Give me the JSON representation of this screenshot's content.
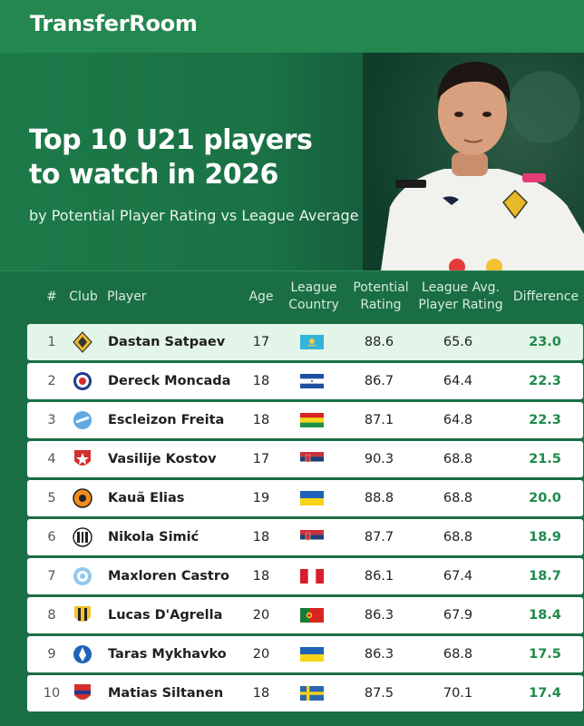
{
  "brand": "TransferRoom",
  "hero": {
    "title_line1": "Top 10 U21 players",
    "title_line2": "to watch in 2026",
    "subtitle": "by Potential Player Rating vs League Average"
  },
  "table": {
    "headers": {
      "rank": "#",
      "club": "Club",
      "player": "Player",
      "age": "Age",
      "league_country_1": "League",
      "league_country_2": "Country",
      "potential_1": "Potential",
      "potential_2": "Rating",
      "avg_1": "League Avg.",
      "avg_2": "Player Rating",
      "difference": "Difference"
    }
  },
  "chart_data": {
    "type": "table",
    "columns": [
      "#",
      "Club",
      "Player",
      "Age",
      "League Country",
      "Potential Rating",
      "League Avg. Player Rating",
      "Difference"
    ],
    "rows": [
      {
        "rank": "1",
        "player": "Dastan Satpaev",
        "age": "17",
        "country": "Kazakhstan",
        "potential": "88.6",
        "league_avg": "65.6",
        "difference": "23.0"
      },
      {
        "rank": "2",
        "player": "Dereck Moncada",
        "age": "18",
        "country": "Honduras",
        "potential": "86.7",
        "league_avg": "64.4",
        "difference": "22.3"
      },
      {
        "rank": "3",
        "player": "Escleizon Freita",
        "age": "18",
        "country": "Bolivia",
        "potential": "87.1",
        "league_avg": "64.8",
        "difference": "22.3"
      },
      {
        "rank": "4",
        "player": "Vasilije Kostov",
        "age": "17",
        "country": "Serbia",
        "potential": "90.3",
        "league_avg": "68.8",
        "difference": "21.5"
      },
      {
        "rank": "5",
        "player": "Kauã Elias",
        "age": "19",
        "country": "Ukraine",
        "potential": "88.8",
        "league_avg": "68.8",
        "difference": "20.0"
      },
      {
        "rank": "6",
        "player": "Nikola Simić",
        "age": "18",
        "country": "Serbia",
        "potential": "87.7",
        "league_avg": "68.8",
        "difference": "18.9"
      },
      {
        "rank": "7",
        "player": "Maxloren Castro",
        "age": "18",
        "country": "Peru",
        "potential": "86.1",
        "league_avg": "67.4",
        "difference": "18.7"
      },
      {
        "rank": "8",
        "player": "Lucas D'Agrella",
        "age": "20",
        "country": "Portugal",
        "potential": "86.3",
        "league_avg": "67.9",
        "difference": "18.4"
      },
      {
        "rank": "9",
        "player": "Taras Mykhavko",
        "age": "20",
        "country": "Ukraine",
        "potential": "86.3",
        "league_avg": "68.8",
        "difference": "17.5"
      },
      {
        "rank": "10",
        "player": "Matias Siltanen",
        "age": "18",
        "country": "Sweden",
        "potential": "87.5",
        "league_avg": "70.1",
        "difference": "17.4"
      }
    ]
  },
  "colors": {
    "background": "#1b6f45",
    "accent_green": "#1f8a4c",
    "highlight_row": "#e3f4e9"
  }
}
